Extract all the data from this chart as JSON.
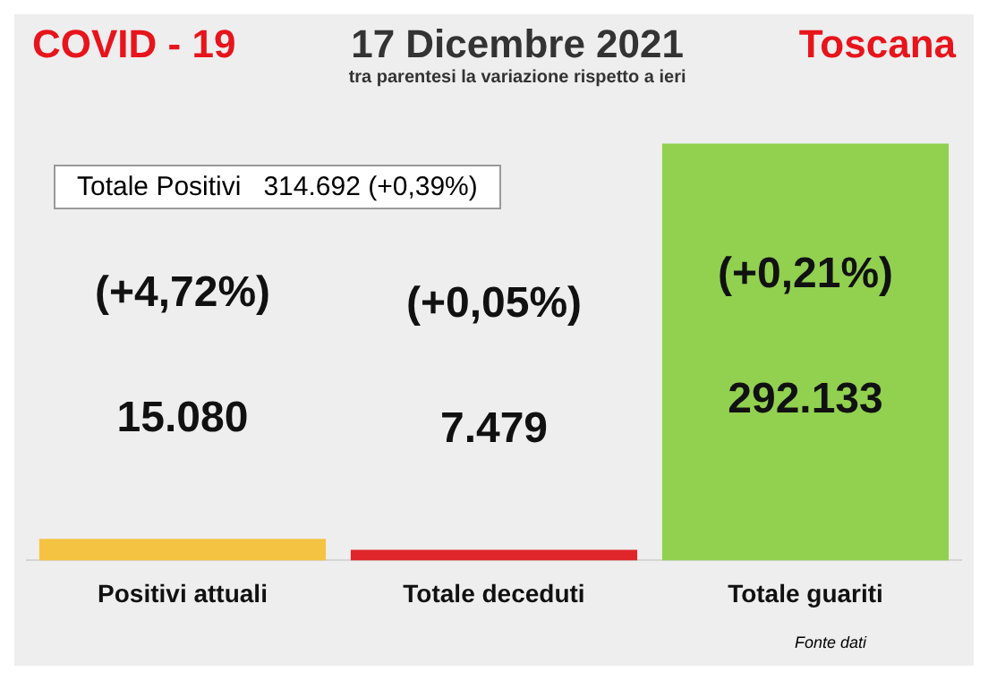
{
  "chart_data": {
    "type": "bar",
    "title": "17 Dicembre 2021",
    "subtitle": "tra parentesi la variazione rispetto a ieri",
    "categories": [
      "Positivi attuali",
      "Totale deceduti",
      "Totale guariti"
    ],
    "values": [
      15080,
      7479,
      292133
    ],
    "colors": [
      "#f5c342",
      "#e0262a",
      "#92d050"
    ],
    "value_labels": [
      "15.080",
      "7.479",
      "292.133"
    ],
    "annotations": [
      "COVID - 19",
      "Toscana",
      "Totale Positivi   314.692 (+0,39%)",
      "(+4,72%)",
      "(+0,05%)",
      "(+0,21%)",
      "Fonte dati"
    ],
    "grid": false,
    "legend": false
  }
}
